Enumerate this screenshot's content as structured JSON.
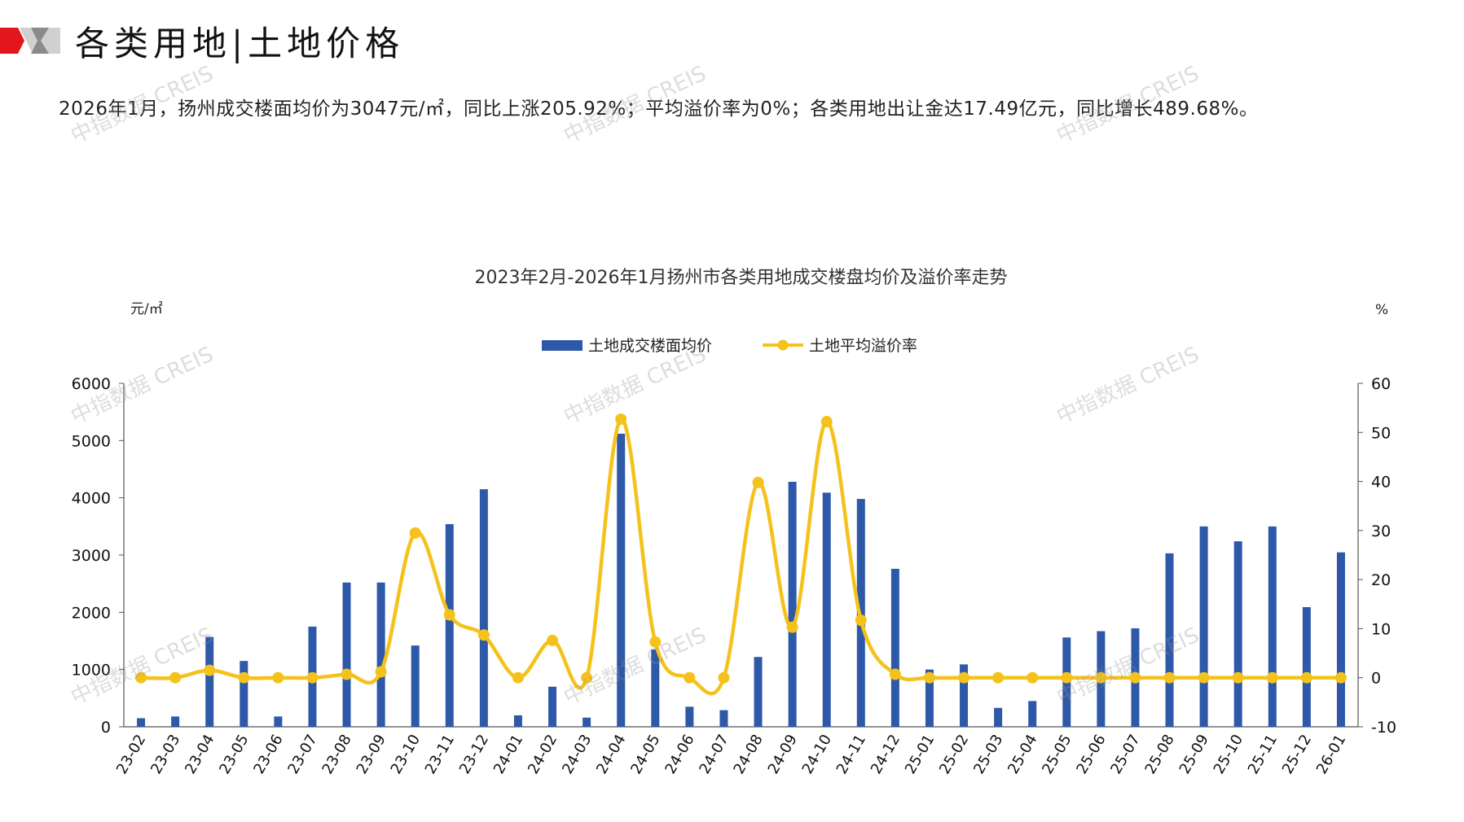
{
  "header": {
    "title": "各类用地|土地价格"
  },
  "summary": "2026年1月，扬州成交楼面均价为3047元/㎡，同比上涨205.92%；平均溢价率为0%；各类用地出让金达17.49亿元，同比增长489.68%。",
  "watermark_text": "中指数据 CREIS",
  "colors": {
    "bar": "#2E59A8",
    "line": "#F5C21B",
    "accent_red": "#E3161C",
    "accent_gray": "#9E9E9E"
  },
  "chart_data": {
    "type": "bar+line",
    "title": "2023年2月-2026年1月扬州市各类用地成交楼盘均价及溢价率走势",
    "y_left_unit": "元/㎡",
    "y_right_unit": "%",
    "y_left_lim": [
      0,
      6000
    ],
    "y_left_ticks": [
      "0",
      "1000",
      "2000",
      "3000",
      "4000",
      "5000",
      "6000"
    ],
    "y_right_lim": [
      -10,
      60
    ],
    "y_right_ticks": [
      "-10",
      "0",
      "10",
      "20",
      "30",
      "40",
      "50",
      "60"
    ],
    "legend_position": "top-center",
    "categories": [
      "23-02",
      "23-03",
      "23-04",
      "23-05",
      "23-06",
      "23-07",
      "23-08",
      "23-09",
      "23-10",
      "23-11",
      "23-12",
      "24-01",
      "24-02",
      "24-03",
      "24-04",
      "24-05",
      "24-06",
      "24-07",
      "24-08",
      "24-09",
      "24-10",
      "24-11",
      "24-12",
      "25-01",
      "25-02",
      "25-03",
      "25-04",
      "25-05",
      "25-06",
      "25-07",
      "25-08",
      "25-09",
      "25-10",
      "25-11",
      "25-12",
      "26-01"
    ],
    "series": [
      {
        "name": "土地成交楼面均价",
        "type": "bar",
        "axis": "left",
        "values": [
          150,
          180,
          1570,
          1150,
          180,
          1750,
          2520,
          2520,
          1420,
          3540,
          4150,
          200,
          700,
          160,
          5120,
          1350,
          350,
          290,
          1220,
          4280,
          4090,
          3980,
          2760,
          1000,
          1090,
          330,
          450,
          1560,
          1670,
          1720,
          3030,
          3500,
          3240,
          3500,
          2090,
          3047
        ]
      },
      {
        "name": "土地平均溢价率",
        "type": "line",
        "axis": "right",
        "values": [
          0,
          0,
          1.5,
          0,
          0,
          0,
          0.7,
          1.2,
          29.5,
          12.8,
          8.7,
          0,
          7.6,
          0,
          52.7,
          7.3,
          0,
          0,
          39.8,
          10.3,
          52.2,
          11.7,
          0.7,
          0,
          0,
          0,
          0,
          0,
          0,
          0,
          0,
          0,
          0,
          0,
          0,
          0
        ]
      }
    ]
  }
}
